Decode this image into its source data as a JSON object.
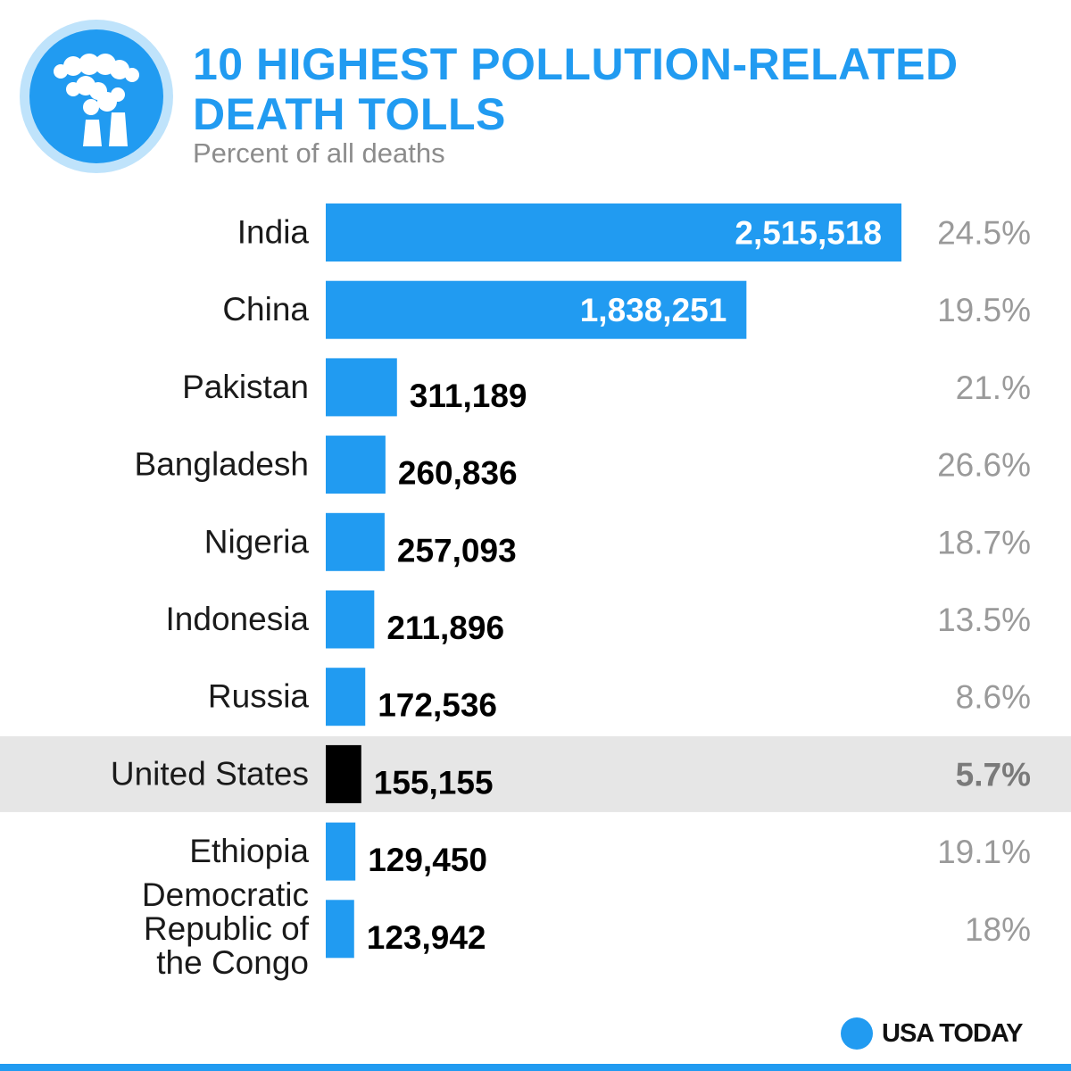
{
  "header": {
    "title": "10 HIGHEST POLLUTION-RELATED DEATH TOLLS",
    "subtitle": "Percent of all deaths",
    "icon": "factory-smokestacks-icon"
  },
  "brand": {
    "name": "USA TODAY"
  },
  "colors": {
    "accent": "#219bf1",
    "highlight_bar": "#000000",
    "highlight_row": "#e6e6e6",
    "value_text_inside": "#ffffff",
    "value_text_outside": "#000000",
    "percent_text": "#9a9a9a"
  },
  "chart_data": {
    "type": "bar",
    "orientation": "horizontal",
    "title": "10 HIGHEST POLLUTION-RELATED DEATH TOLLS",
    "subtitle": "Percent of all deaths",
    "xlim": [
      0,
      2515518
    ],
    "categories": [
      [
        "India"
      ],
      [
        "China"
      ],
      [
        "Pakistan"
      ],
      [
        "Bangladesh"
      ],
      [
        "Nigeria"
      ],
      [
        "Indonesia"
      ],
      [
        "Russia"
      ],
      [
        "United States"
      ],
      [
        "Ethiopia"
      ],
      [
        "Democratic",
        "Republic of",
        "the Congo"
      ]
    ],
    "values": [
      2515518,
      1838251,
      311189,
      260836,
      257093,
      211896,
      172536,
      155155,
      129450,
      123942
    ],
    "value_labels": [
      "2,515,518",
      "1,838,251",
      "311,189",
      "260,836",
      "257,093",
      "211,896",
      "172,536",
      "155,155",
      "129,450",
      "123,942"
    ],
    "percent_labels": [
      "24.5%",
      "19.5%",
      "21.%",
      "26.6%",
      "18.7%",
      "13.5%",
      "8.6%",
      "5.7%",
      "19.1%",
      "18%"
    ],
    "highlighted": "United States"
  }
}
